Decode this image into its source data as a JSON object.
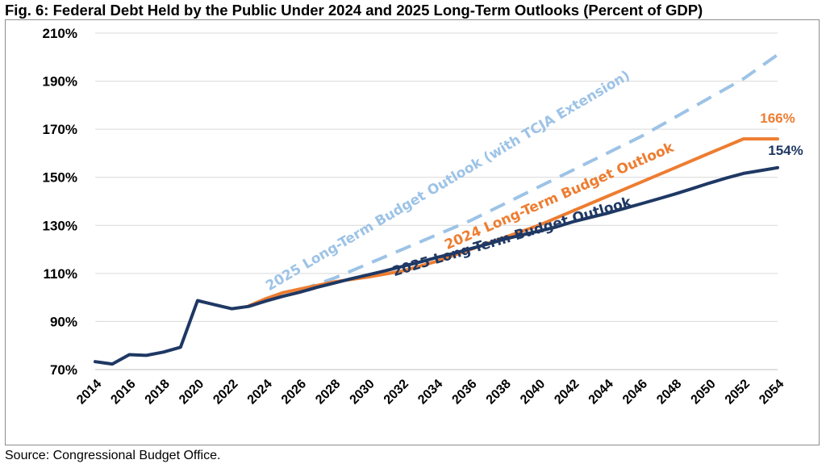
{
  "title": "Fig. 6: Federal Debt Held by the Public Under 2024 and 2025 Long-Term Outlooks (Percent of GDP)",
  "source": "Source: Congressional Budget Office.",
  "chart_data": {
    "type": "line",
    "title": "Fig. 6: Federal Debt Held by the Public Under 2024 and 2025 Long-Term Outlooks (Percent of GDP)",
    "xlabel": "",
    "ylabel": "",
    "ylim": [
      70,
      210
    ],
    "xlim": [
      2014,
      2054
    ],
    "yticks": [
      70,
      90,
      110,
      130,
      150,
      170,
      190,
      210
    ],
    "ytick_labels": [
      "70%",
      "90%",
      "110%",
      "130%",
      "150%",
      "170%",
      "190%",
      "210%"
    ],
    "xticks": [
      2014,
      2016,
      2018,
      2020,
      2022,
      2024,
      2026,
      2028,
      2030,
      2032,
      2034,
      2036,
      2038,
      2040,
      2042,
      2044,
      2046,
      2048,
      2050,
      2052,
      2054
    ],
    "grid": "horizontal",
    "legend": "none",
    "series": [
      {
        "name": "2025 Long-Term Budget Outlook (with TCJA Extension)",
        "color": "#9dc3e6",
        "style": "dashed",
        "x": [
          2026,
          2028,
          2030,
          2032,
          2034,
          2036,
          2038,
          2040,
          2042,
          2044,
          2046,
          2048,
          2050,
          2052,
          2054
        ],
        "values": [
          103,
          108,
          114,
          120,
          126,
          132,
          139,
          146,
          153,
          160,
          167,
          175,
          183,
          191,
          201
        ]
      },
      {
        "name": "2024 Long-Term Budget Outlook",
        "color": "#ed7d31",
        "style": "solid",
        "x": [
          2023,
          2024,
          2025,
          2026,
          2027,
          2028,
          2029,
          2030,
          2032,
          2034,
          2036,
          2038,
          2040,
          2042,
          2044,
          2046,
          2048,
          2050,
          2052,
          2054
        ],
        "values": [
          96.5,
          99.5,
          102,
          103.5,
          105,
          106.5,
          107.5,
          108.5,
          111,
          115,
          120,
          125,
          130,
          136,
          142,
          148,
          154,
          160,
          166,
          166
        ],
        "end_label": "166%"
      },
      {
        "name": "2025 Long-Term Budget Outlook",
        "color": "#1f3864",
        "style": "solid",
        "x": [
          2014,
          2015,
          2016,
          2017,
          2018,
          2019,
          2020,
          2021,
          2022,
          2023,
          2024,
          2025,
          2026,
          2027,
          2028,
          2029,
          2030,
          2031,
          2032,
          2033,
          2034,
          2035,
          2036,
          2037,
          2038,
          2039,
          2040,
          2041,
          2042,
          2043,
          2044,
          2045,
          2046,
          2047,
          2048,
          2049,
          2050,
          2051,
          2052,
          2053,
          2054
        ],
        "values": [
          73.3,
          72.3,
          76.2,
          75.9,
          77.3,
          79.3,
          98.7,
          97,
          95.3,
          96.3,
          98.5,
          100.5,
          102.2,
          104.2,
          106,
          107.8,
          109.4,
          111.1,
          112.9,
          114.7,
          116.6,
          118.3,
          120.3,
          122.2,
          124.3,
          126,
          127.6,
          129.3,
          131.5,
          133.3,
          135,
          137,
          139,
          141,
          143.1,
          145.3,
          147.6,
          149.7,
          151.6,
          152.8,
          154
        ],
        "end_label": "154%"
      }
    ],
    "annotations": [
      {
        "text": "2025 Long-Term Budget Outlook (with TCJA Extension)",
        "series": 0
      },
      {
        "text": "2024 Long-Term Budget Outlook",
        "series": 1
      },
      {
        "text": "2025 Long-Term Budget Outlook",
        "series": 2
      }
    ]
  }
}
